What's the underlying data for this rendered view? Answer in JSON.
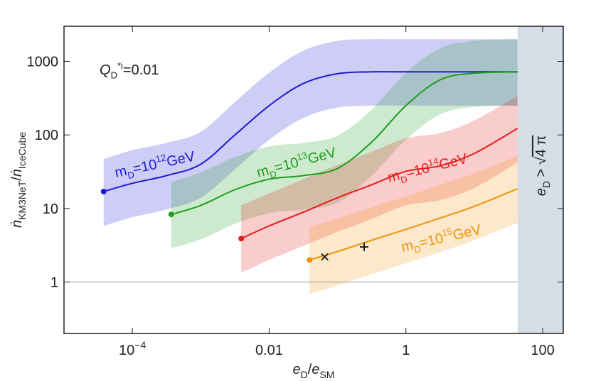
{
  "chart_data": {
    "type": "line",
    "xlog": true,
    "ylog": true,
    "xlim": [
      1e-05,
      200
    ],
    "ylim": [
      0.2,
      3000
    ],
    "xticks": [
      {
        "value": 0.0001,
        "label": [
          [
            "10",
            ""
          ],
          [
            "−4",
            "sup"
          ]
        ]
      },
      0.01,
      1,
      100
    ],
    "yticks": [
      1,
      10,
      100,
      1000
    ],
    "xlabel": [
      [
        "e",
        "it"
      ],
      [
        "D",
        "sub"
      ],
      [
        "/",
        ""
      ],
      [
        "e",
        "it"
      ],
      [
        "SM",
        "sub"
      ]
    ],
    "ylabel": [
      [
        "ṅ",
        "it"
      ],
      [
        "KM3NeT",
        "sub"
      ],
      [
        "/",
        ""
      ],
      [
        "ṅ",
        "it"
      ],
      [
        "IceCube",
        "sub"
      ]
    ],
    "annotation": [
      [
        "Q",
        "it"
      ],
      [
        "D",
        "sub"
      ],
      [
        "*i",
        "sup"
      ],
      [
        "=0.01",
        ""
      ]
    ],
    "hline": 1,
    "shaded_region": {
      "x_from": 43,
      "color": "#d5dde6",
      "label": [
        [
          "e",
          "it"
        ],
        [
          "D",
          "sub"
        ],
        [
          " > √",
          ""
        ],
        [
          "4 π",
          "over"
        ]
      ]
    },
    "markers": [
      {
        "shape": "x",
        "x": 0.065,
        "y": 2.2
      },
      {
        "shape": "plus",
        "x": 0.245,
        "y": 3.0
      }
    ],
    "series": [
      {
        "name": [
          [
            "m",
            ""
          ],
          [
            "D",
            "sub"
          ],
          [
            "=10",
            ""
          ],
          [
            "12",
            "sup"
          ],
          [
            "GeV",
            ""
          ]
        ],
        "color": "#1c1cd4",
        "x": [
          3.8e-05,
          0.0001,
          0.000316,
          0.001,
          0.00316,
          0.01,
          0.0316,
          0.1,
          0.316,
          1,
          43
        ],
        "values": [
          17,
          22,
          28,
          40,
          100,
          250,
          500,
          680,
          720,
          720,
          720
        ],
        "upper": [
          47,
          62,
          78,
          110,
          280,
          700,
          1400,
          1900,
          2000,
          2000,
          2000
        ],
        "lower": [
          5.8,
          7.6,
          9.7,
          14,
          34,
          86,
          170,
          235,
          250,
          250,
          250
        ]
      },
      {
        "name": [
          [
            "m",
            ""
          ],
          [
            "D",
            "sub"
          ],
          [
            "=10",
            ""
          ],
          [
            "13",
            "sup"
          ],
          [
            "GeV",
            ""
          ]
        ],
        "color": "#1e9e1e",
        "x": [
          0.00037,
          0.001,
          0.00316,
          0.01,
          0.0316,
          0.1,
          0.316,
          1,
          3.16,
          10,
          43
        ],
        "values": [
          8.3,
          11,
          18,
          25,
          28,
          35,
          80,
          250,
          560,
          690,
          720
        ],
        "upper": [
          23,
          31,
          50,
          70,
          78,
          98,
          220,
          700,
          1500,
          1900,
          2000
        ],
        "lower": [
          2.9,
          3.8,
          6.2,
          8.6,
          9.7,
          12,
          28,
          86,
          190,
          240,
          250
        ]
      },
      {
        "name": [
          [
            "m",
            ""
          ],
          [
            "D",
            "sub"
          ],
          [
            "=10",
            ""
          ],
          [
            "14",
            "sup"
          ],
          [
            "GeV",
            ""
          ]
        ],
        "color": "#e81c1c",
        "x": [
          0.0039,
          0.01,
          0.0316,
          0.1,
          0.316,
          1,
          3.16,
          10,
          43
        ],
        "values": [
          3.9,
          5.8,
          8.9,
          14,
          21,
          32,
          38,
          56,
          123
        ],
        "upper": [
          11,
          16,
          25,
          39,
          59,
          90,
          106,
          157,
          340
        ],
        "lower": [
          1.34,
          2.0,
          3.1,
          4.8,
          7.2,
          11,
          13,
          19,
          42
        ]
      },
      {
        "name": [
          [
            "m",
            ""
          ],
          [
            "D",
            "sub"
          ],
          [
            "=10",
            ""
          ],
          [
            "15",
            "sup"
          ],
          [
            "GeV",
            ""
          ]
        ],
        "color": "#f0940e",
        "x": [
          0.039,
          0.1,
          0.316,
          1,
          3.16,
          10,
          43
        ],
        "values": [
          2.0,
          2.6,
          3.7,
          5.2,
          7.4,
          10.7,
          18.6
        ],
        "upper": [
          5.6,
          7.3,
          10.4,
          14.6,
          21,
          30,
          52
        ],
        "lower": [
          0.69,
          0.9,
          1.28,
          1.8,
          2.55,
          3.7,
          6.4
        ]
      }
    ]
  }
}
